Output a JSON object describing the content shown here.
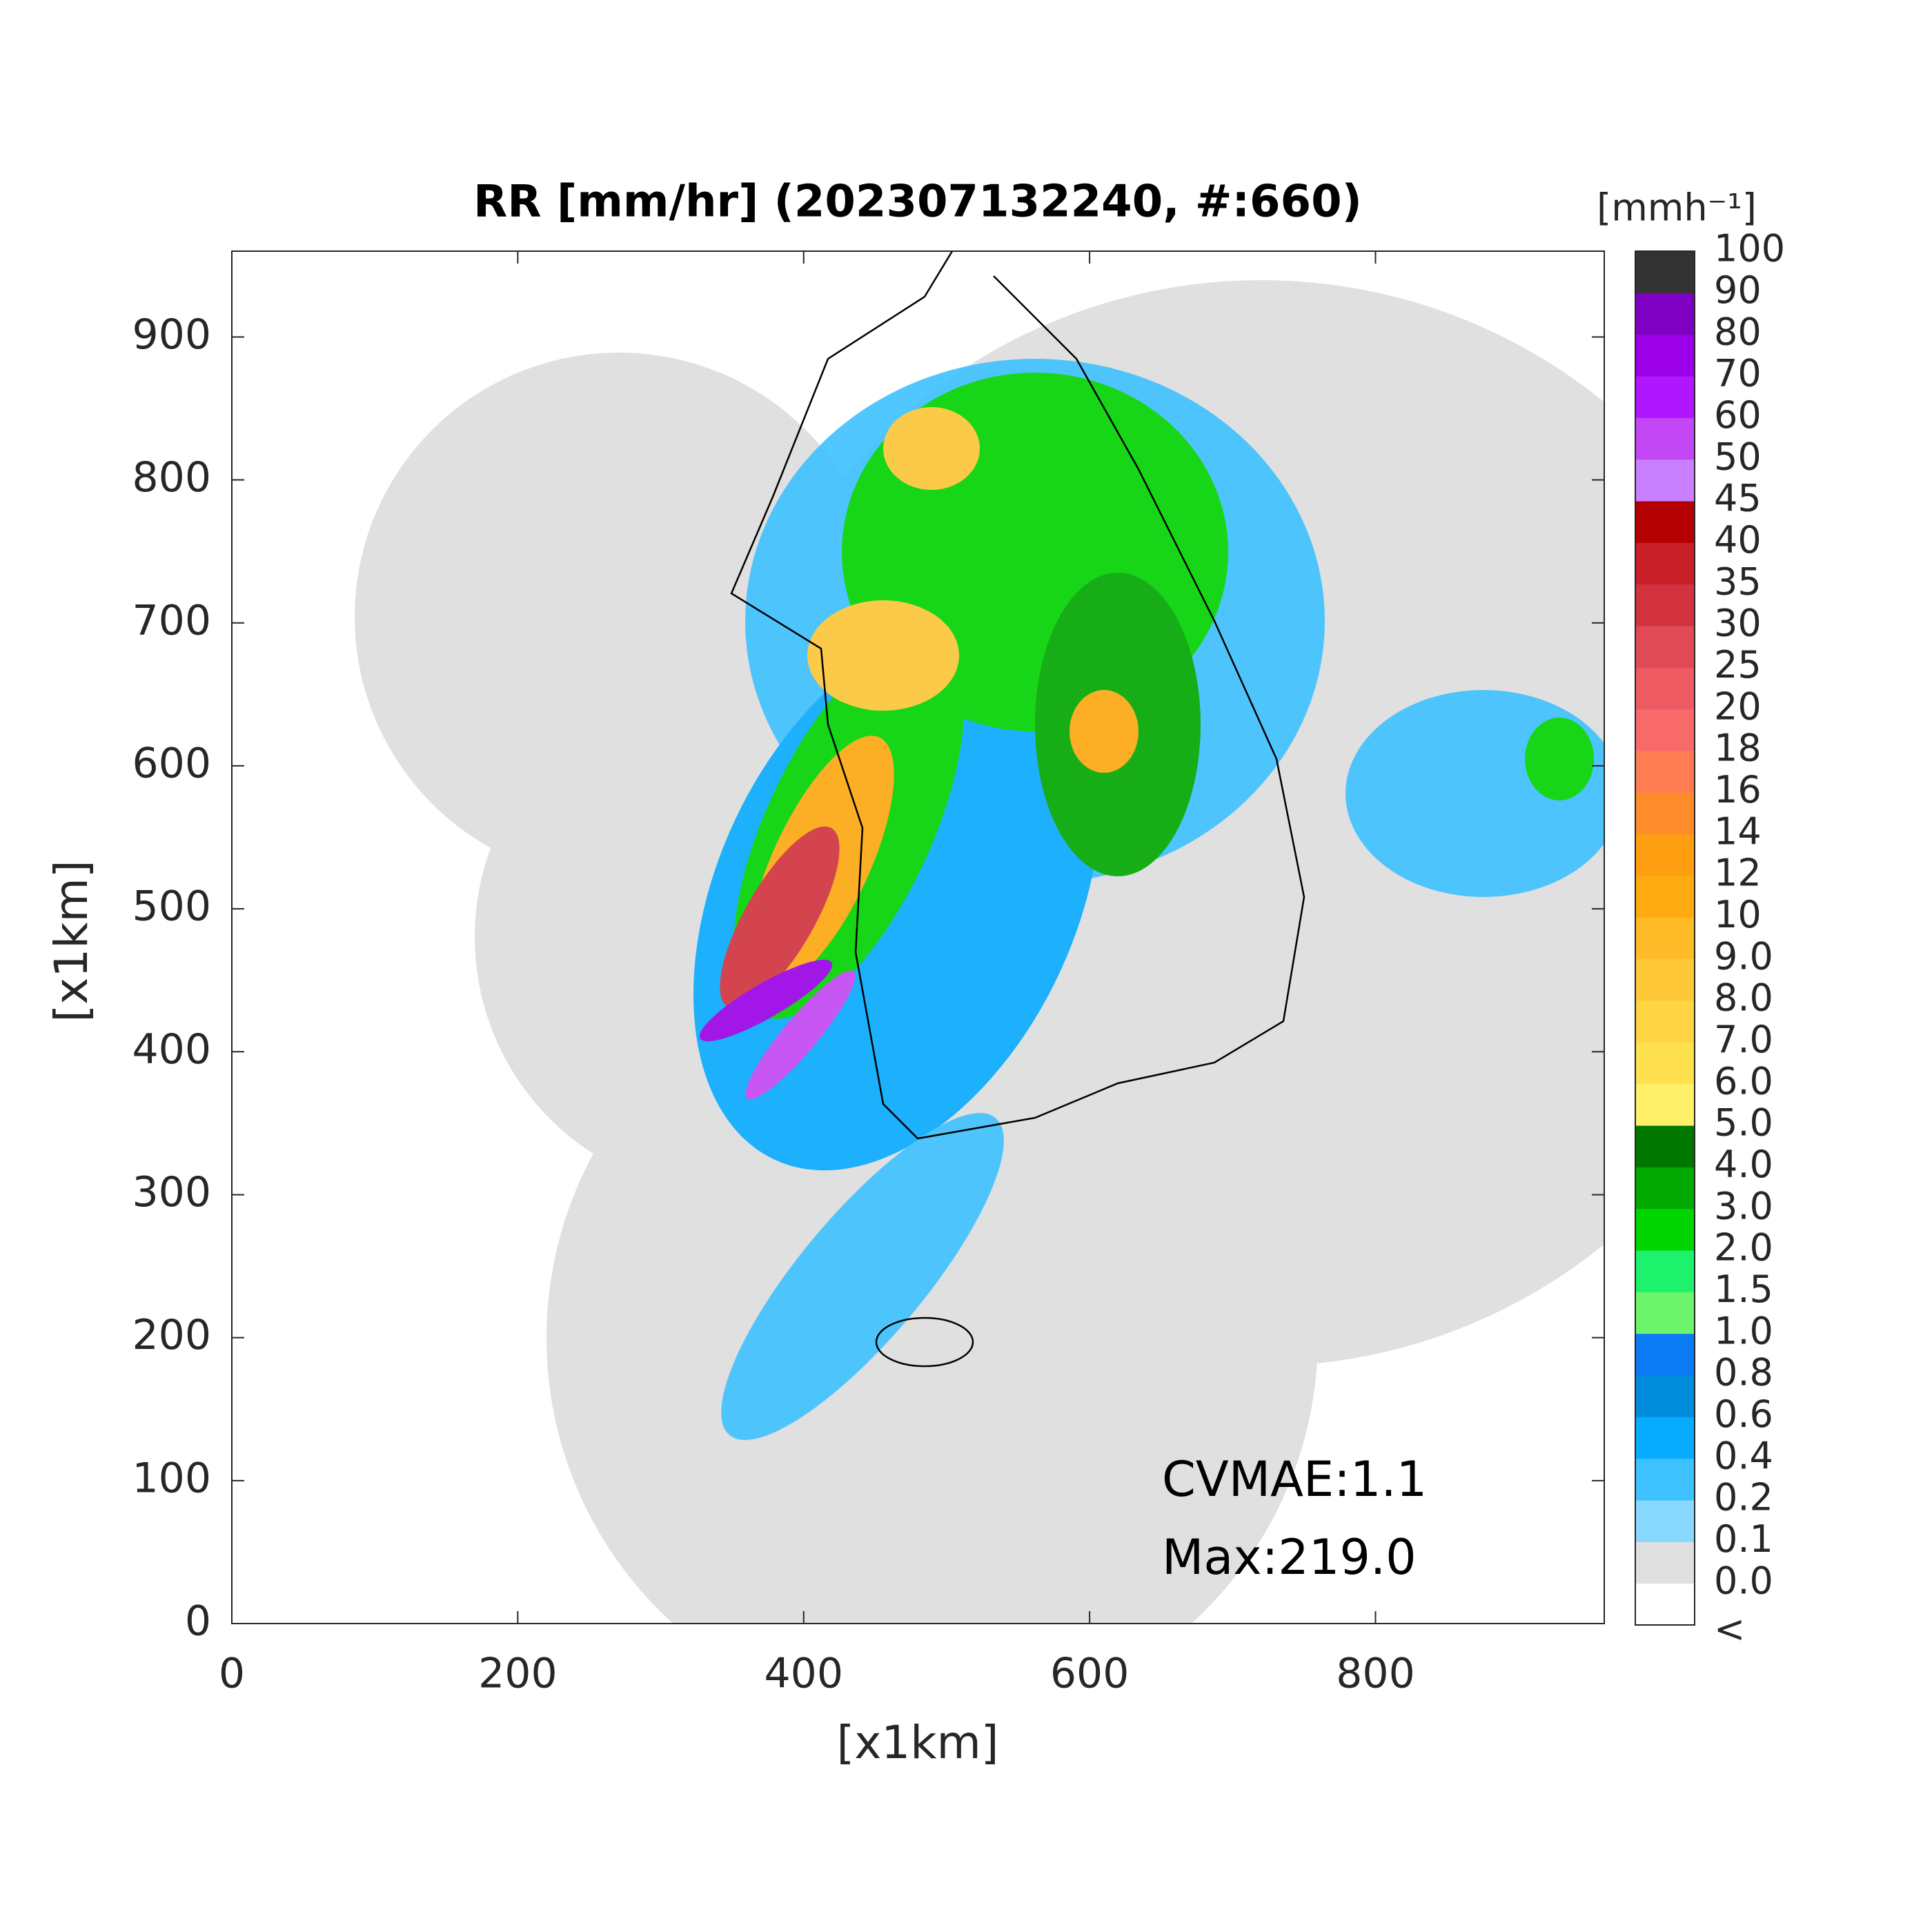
{
  "chart_data": {
    "type": "radar-map",
    "title": "RR [mm/hr] (202307132240, #:660)",
    "xlabel": "[x1km]",
    "ylabel": "[x1km]",
    "xlim": [
      0,
      960
    ],
    "ylim": [
      0,
      960
    ],
    "xticks": [
      0,
      200,
      400,
      600,
      800
    ],
    "yticks": [
      0,
      100,
      200,
      300,
      400,
      500,
      600,
      700,
      800,
      900
    ],
    "annotations": [
      "CVMAE:1.1",
      "Max:219.0"
    ],
    "colorbar": {
      "title": "[mmh⁻¹]",
      "labels": [
        "<",
        "0.0",
        "0.1",
        "0.2",
        "0.4",
        "0.6",
        "0.8",
        "1.0",
        "1.5",
        "2.0",
        "3.0",
        "4.0",
        "5.0",
        "6.0",
        "7.0",
        "8.0",
        "9.0",
        "10",
        "12",
        "14",
        "16",
        "18",
        "20",
        "25",
        "30",
        "35",
        "40",
        "45",
        "50",
        "60",
        "70",
        "80",
        "90",
        "100"
      ],
      "colors": [
        "#ffffff",
        "#e0e0e0",
        "#87d9ff",
        "#3ec1ff",
        "#07abff",
        "#008dde",
        "#0a7af5",
        "#6cf56c",
        "#1ef26c",
        "#00d500",
        "#00a800",
        "#007800",
        "#fff06a",
        "#ffe150",
        "#ffd544",
        "#ffc838",
        "#ffba28",
        "#ffaa10",
        "#ff9e10",
        "#ff8c2b",
        "#ff7d50",
        "#f86a6a",
        "#ee5a62",
        "#e04a55",
        "#d2333f",
        "#c81f28",
        "#b40000",
        "#c880ff",
        "#c447f5",
        "#b016ff",
        "#9b00e8",
        "#7e00c0",
        "#333333"
      ]
    }
  }
}
